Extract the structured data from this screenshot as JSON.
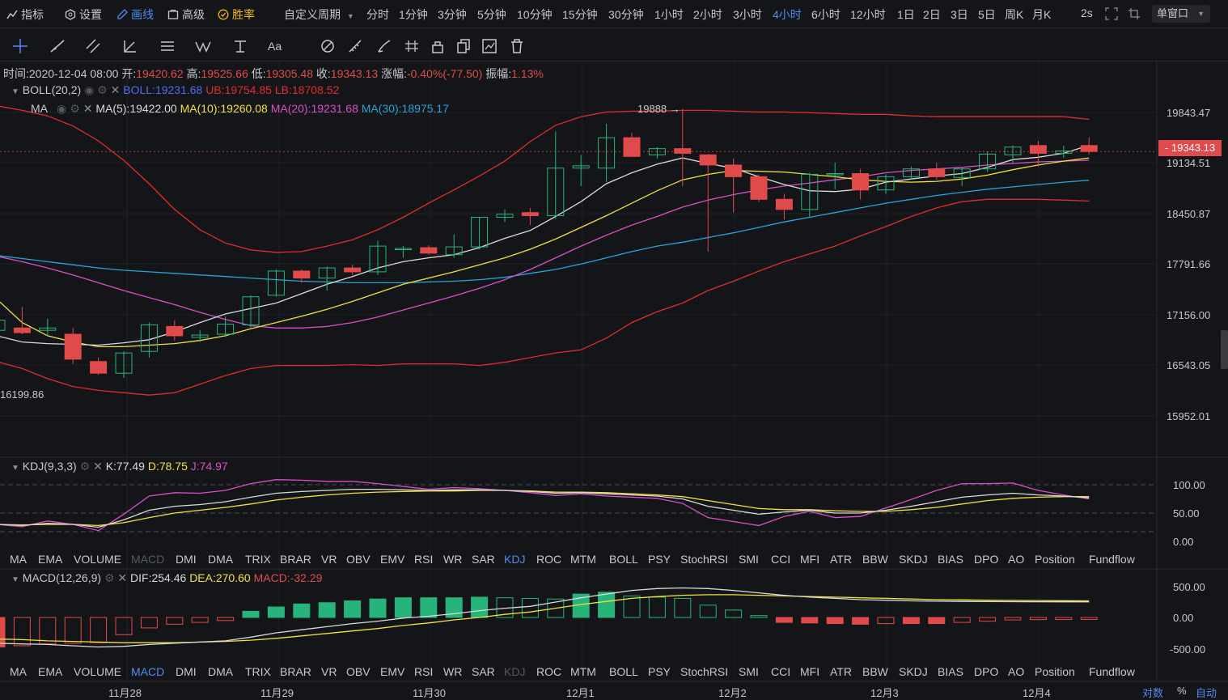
{
  "topbar": {
    "items": [
      {
        "label": "指标",
        "icon": "indicator-icon"
      },
      {
        "label": "设置",
        "icon": "settings-icon"
      },
      {
        "label": "画线",
        "icon": "draw-icon"
      },
      {
        "label": "高级",
        "icon": "advanced-icon"
      },
      {
        "label": "胜率",
        "icon": "winrate-icon"
      }
    ],
    "custom_period": "自定义周期",
    "periods": [
      "分时",
      "1分钟",
      "3分钟",
      "5分钟",
      "10分钟",
      "15分钟",
      "30分钟",
      "1小时",
      "2小时",
      "3小时",
      "4小时",
      "6小时",
      "12小时",
      "1日",
      "2日",
      "3日",
      "5日",
      "周K",
      "月K"
    ],
    "active_period": "4小时",
    "refresh": "2s",
    "window_mode": "单窗口"
  },
  "ohlc": {
    "time_label": "时间:",
    "time": "2020-12-04 08:00",
    "open_label": "开:",
    "open": "19420.62",
    "high_label": "高:",
    "high": "19525.66",
    "low_label": "低:",
    "low": "19305.48",
    "close_label": "收:",
    "close": "19343.13",
    "change_label": "涨幅:",
    "change": "-0.40%(-77.50)",
    "amp_label": "振幅:",
    "amp": "1.13%"
  },
  "boll": {
    "name": "BOLL(20,2)",
    "mid": "BOLL:19231.68",
    "ub": "UB:19754.85",
    "lb": "LB:18708.52"
  },
  "ma": {
    "name": "MA",
    "ma5": "MA(5):19422.00",
    "ma10": "MA(10):19260.08",
    "ma20": "MA(20):19231.68",
    "ma30": "MA(30):18975.17"
  },
  "kdj": {
    "name": "KDJ(9,3,3)",
    "k": "K:77.49",
    "d": "D:78.75",
    "j": "J:74.97"
  },
  "macd": {
    "name": "MACD(12,26,9)",
    "dif": "DIF:254.46",
    "dea": "DEA:270.60",
    "macd": "MACD:-32.29"
  },
  "price_axis": [
    "19843.47",
    "19134.51",
    "18450.87",
    "17791.66",
    "17156.00",
    "16543.05",
    "15952.01"
  ],
  "current_price": "19343.13",
  "low_marker": "16199.86",
  "high_marker": "19888",
  "kdj_axis": [
    "100.00",
    "50.00",
    "0.00"
  ],
  "macd_axis": [
    "500.00",
    "0.00",
    "-500.00"
  ],
  "indicator_tabs": [
    "MA",
    "EMA",
    "VOLUME",
    "MACD",
    "DMI",
    "DMA",
    "TRIX",
    "BRAR",
    "VR",
    "OBV",
    "EMV",
    "RSI",
    "WR",
    "SAR",
    "KDJ",
    "ROC",
    "MTM",
    "BOLL",
    "PSY",
    "StochRSI",
    "SMI",
    "CCI",
    "MFI",
    "ATR",
    "BBW",
    "SKDJ",
    "BIAS",
    "DPO",
    "AO",
    "Position",
    "Fundflow"
  ],
  "tabs_row1_active": "KDJ",
  "tabs_row1_dim": "MACD",
  "tabs_row2_active": "MACD",
  "tabs_row2_dim": "KDJ",
  "dates": [
    "11月28",
    "11月29",
    "11月30",
    "12月1",
    "12月2",
    "12月3",
    "12月4"
  ],
  "bottom_right": {
    "log": "对数",
    "pct": "%",
    "auto": "自动"
  },
  "colors": {
    "up": "#27b47a",
    "down": "#e04a4a",
    "accent": "#4f8cf0",
    "ma5": "#d9d9d9",
    "ma10": "#f2e13a",
    "ma20": "#d94fc7",
    "ma30": "#2aa3d9",
    "boll": "#e02c2c"
  },
  "chart_data": {
    "type": "candlestick",
    "candles": [
      {
        "o": 17050,
        "h": 17250,
        "l": 16600,
        "c": 17180
      },
      {
        "o": 17080,
        "h": 17350,
        "l": 17000,
        "c": 17020
      },
      {
        "o": 17050,
        "h": 17200,
        "l": 16980,
        "c": 17080
      },
      {
        "o": 17000,
        "h": 17080,
        "l": 16620,
        "c": 16680
      },
      {
        "o": 16650,
        "h": 16700,
        "l": 16480,
        "c": 16500
      },
      {
        "o": 16500,
        "h": 16780,
        "l": 16440,
        "c": 16760
      },
      {
        "o": 16780,
        "h": 17150,
        "l": 16700,
        "c": 17120
      },
      {
        "o": 17100,
        "h": 17180,
        "l": 16920,
        "c": 16980
      },
      {
        "o": 16960,
        "h": 17050,
        "l": 16900,
        "c": 16990
      },
      {
        "o": 17000,
        "h": 17230,
        "l": 16960,
        "c": 17130
      },
      {
        "o": 17120,
        "h": 17500,
        "l": 17070,
        "c": 17480
      },
      {
        "o": 17500,
        "h": 17830,
        "l": 17480,
        "c": 17810
      },
      {
        "o": 17810,
        "h": 17830,
        "l": 17660,
        "c": 17720
      },
      {
        "o": 17720,
        "h": 17870,
        "l": 17560,
        "c": 17850
      },
      {
        "o": 17850,
        "h": 17890,
        "l": 17760,
        "c": 17800
      },
      {
        "o": 17800,
        "h": 18200,
        "l": 17760,
        "c": 18130
      },
      {
        "o": 18090,
        "h": 18130,
        "l": 17980,
        "c": 18100
      },
      {
        "o": 18110,
        "h": 18140,
        "l": 18020,
        "c": 18040
      },
      {
        "o": 18020,
        "h": 18280,
        "l": 17980,
        "c": 18120
      },
      {
        "o": 18120,
        "h": 18500,
        "l": 18090,
        "c": 18500
      },
      {
        "o": 18500,
        "h": 18600,
        "l": 18440,
        "c": 18540
      },
      {
        "o": 18560,
        "h": 18620,
        "l": 18400,
        "c": 18520
      },
      {
        "o": 18520,
        "h": 19600,
        "l": 18480,
        "c": 19130
      },
      {
        "o": 19130,
        "h": 19300,
        "l": 18900,
        "c": 19160
      },
      {
        "o": 19130,
        "h": 19700,
        "l": 18950,
        "c": 19520
      },
      {
        "o": 19520,
        "h": 19580,
        "l": 19280,
        "c": 19280
      },
      {
        "o": 19300,
        "h": 19400,
        "l": 19250,
        "c": 19380
      },
      {
        "o": 19380,
        "h": 19888,
        "l": 18900,
        "c": 19320
      },
      {
        "o": 19300,
        "h": 19310,
        "l": 18060,
        "c": 19170
      },
      {
        "o": 19170,
        "h": 19250,
        "l": 18560,
        "c": 19020
      },
      {
        "o": 19020,
        "h": 19050,
        "l": 18700,
        "c": 18730
      },
      {
        "o": 18730,
        "h": 18800,
        "l": 18470,
        "c": 18600
      },
      {
        "o": 18600,
        "h": 19070,
        "l": 18500,
        "c": 19050
      },
      {
        "o": 19050,
        "h": 19200,
        "l": 18860,
        "c": 19060
      },
      {
        "o": 19060,
        "h": 19120,
        "l": 18730,
        "c": 18850
      },
      {
        "o": 18850,
        "h": 19050,
        "l": 18800,
        "c": 19020
      },
      {
        "o": 19020,
        "h": 19150,
        "l": 18980,
        "c": 19120
      },
      {
        "o": 19120,
        "h": 19200,
        "l": 18980,
        "c": 19020
      },
      {
        "o": 19010,
        "h": 19140,
        "l": 18900,
        "c": 19120
      },
      {
        "o": 19120,
        "h": 19340,
        "l": 19080,
        "c": 19310
      },
      {
        "o": 19300,
        "h": 19420,
        "l": 19200,
        "c": 19400
      },
      {
        "o": 19420,
        "h": 19480,
        "l": 19150,
        "c": 19320
      },
      {
        "o": 19320,
        "h": 19420,
        "l": 19260,
        "c": 19350
      },
      {
        "o": 19420,
        "h": 19525,
        "l": 19305,
        "c": 19343
      }
    ],
    "ma5": [
      16980,
      16900,
      16880,
      16870,
      16860,
      16890,
      16930,
      17030,
      17150,
      17260,
      17330,
      17400,
      17520,
      17640,
      17740,
      17850,
      17930,
      17980,
      18020,
      18110,
      18230,
      18330,
      18510,
      18700,
      18930,
      19070,
      19180,
      19260,
      19190,
      19130,
      19020,
      18920,
      18840,
      18830,
      18860,
      18950,
      18990,
      19030,
      19060,
      19140,
      19240,
      19270,
      19320,
      19422
    ],
    "ma10": [
      17450,
      17150,
      16980,
      16900,
      16840,
      16840,
      16860,
      16880,
      16920,
      16980,
      17070,
      17150,
      17230,
      17320,
      17420,
      17530,
      17640,
      17720,
      17800,
      17890,
      17980,
      18090,
      18220,
      18370,
      18520,
      18680,
      18840,
      18980,
      19050,
      19100,
      19090,
      19080,
      19050,
      19020,
      18980,
      18960,
      18950,
      18960,
      18990,
      19040,
      19110,
      19170,
      19220,
      19260
    ],
    "ma20": [
      18000,
      17930,
      17850,
      17760,
      17660,
      17560,
      17470,
      17380,
      17280,
      17190,
      17110,
      17080,
      17080,
      17100,
      17150,
      17220,
      17310,
      17400,
      17490,
      17590,
      17700,
      17830,
      17980,
      18130,
      18270,
      18400,
      18510,
      18630,
      18720,
      18790,
      18850,
      18900,
      18940,
      18980,
      19020,
      19070,
      19100,
      19120,
      19140,
      19170,
      19190,
      19210,
      19220,
      19231
    ],
    "ma30": [
      18010,
      17970,
      17930,
      17890,
      17850,
      17820,
      17800,
      17780,
      17760,
      17740,
      17720,
      17700,
      17680,
      17670,
      17660,
      17660,
      17660,
      17670,
      17680,
      17700,
      17730,
      17780,
      17830,
      17900,
      17980,
      18060,
      18130,
      18180,
      18240,
      18300,
      18370,
      18440,
      18500,
      18560,
      18620,
      18680,
      18730,
      18780,
      18820,
      18860,
      18890,
      18920,
      18950,
      18975
    ],
    "boll_ub": [
      19930,
      19870,
      19800,
      19670,
      19480,
      19230,
      18930,
      18600,
      18340,
      18170,
      18080,
      18050,
      18060,
      18130,
      18210,
      18340,
      18500,
      18680,
      18850,
      19030,
      19220,
      19470,
      19680,
      19790,
      19850,
      19860,
      19860,
      19870,
      19870,
      19860,
      19850,
      19850,
      19840,
      19830,
      19820,
      19820,
      19800,
      19790,
      19790,
      19790,
      19790,
      19790,
      19790,
      19755
    ],
    "boll_lb": [
      16650,
      16560,
      16430,
      16330,
      16280,
      16250,
      16220,
      16250,
      16360,
      16470,
      16560,
      16600,
      16600,
      16600,
      16610,
      16600,
      16620,
      16620,
      16620,
      16600,
      16640,
      16700,
      16760,
      16800,
      16950,
      17150,
      17290,
      17400,
      17560,
      17680,
      17810,
      17930,
      18030,
      18130,
      18260,
      18380,
      18510,
      18620,
      18700,
      18730,
      18730,
      18730,
      18720,
      18708
    ],
    "kdj_k": [
      30,
      28,
      32,
      30,
      25,
      38,
      55,
      62,
      65,
      70,
      78,
      85,
      88,
      90,
      92,
      92,
      91,
      90,
      91,
      91,
      90,
      88,
      85,
      86,
      84,
      82,
      80,
      75,
      62,
      55,
      48,
      52,
      55,
      50,
      50,
      55,
      62,
      70,
      78,
      82,
      85,
      82,
      80,
      77
    ],
    "kdj_d": [
      30,
      29,
      30,
      30,
      28,
      33,
      42,
      50,
      55,
      60,
      66,
      73,
      78,
      82,
      85,
      87,
      88,
      89,
      89,
      90,
      90,
      89,
      87,
      87,
      86,
      84,
      82,
      79,
      72,
      65,
      58,
      56,
      56,
      54,
      53,
      53,
      56,
      60,
      66,
      72,
      76,
      78,
      79,
      79
    ],
    "kdj_j": [
      30,
      26,
      36,
      30,
      19,
      48,
      80,
      86,
      85,
      90,
      102,
      109,
      108,
      106,
      106,
      102,
      97,
      92,
      95,
      93,
      90,
      86,
      81,
      84,
      80,
      78,
      76,
      67,
      42,
      35,
      28,
      44,
      53,
      42,
      44,
      59,
      74,
      90,
      102,
      102,
      103,
      90,
      82,
      75
    ],
    "macd_dif": [
      -420,
      -430,
      -440,
      -460,
      -480,
      -470,
      -440,
      -420,
      -400,
      -380,
      -320,
      -250,
      -200,
      -150,
      -100,
      -60,
      -10,
      20,
      60,
      110,
      150,
      180,
      250,
      320,
      380,
      440,
      470,
      480,
      470,
      440,
      400,
      360,
      330,
      310,
      290,
      280,
      270,
      265,
      260,
      258,
      256,
      255,
      254,
      254
    ],
    "macd_dea": [
      -350,
      -360,
      -380,
      -390,
      -400,
      -410,
      -410,
      -410,
      -400,
      -390,
      -370,
      -340,
      -300,
      -260,
      -220,
      -180,
      -130,
      -90,
      -40,
      0,
      50,
      90,
      150,
      210,
      260,
      310,
      340,
      360,
      370,
      370,
      360,
      350,
      340,
      330,
      320,
      310,
      300,
      290,
      285,
      280,
      278,
      275,
      272,
      270
    ],
    "macd_hist": [
      -480,
      -460,
      -430,
      -420,
      -410,
      -280,
      -170,
      -110,
      -80,
      -50,
      100,
      170,
      220,
      240,
      270,
      300,
      320,
      320,
      320,
      330,
      320,
      310,
      300,
      380,
      410,
      350,
      330,
      310,
      200,
      120,
      30,
      -80,
      -90,
      -100,
      -110,
      -100,
      -100,
      -100,
      -80,
      -60,
      -40,
      -35,
      -34,
      -32
    ]
  }
}
